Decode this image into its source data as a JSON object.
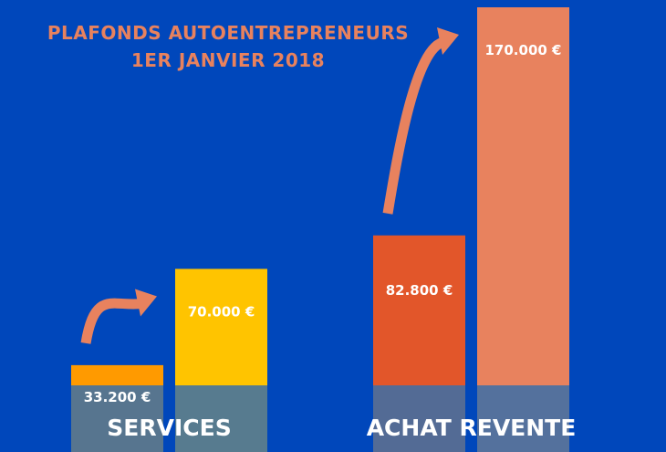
{
  "title": [
    "PLAFONDS AUTOENTREPRENEURS",
    "1ER JANVIER 2018"
  ],
  "colors": {
    "background": "#0047BB",
    "title": "#E8825E",
    "arrow": "#E8825E",
    "services_old": "#FF9A00",
    "services_new": "#FFC400",
    "achat_old": "#E2562A",
    "achat_new": "#E8825E"
  },
  "chart_data": {
    "type": "bar",
    "title": "PLAFONDS AUTOENTREPRENEURS 1ER JANVIER 2018",
    "groups": [
      {
        "label": "SERVICES",
        "bars": [
          {
            "value": 33200,
            "label": "33.200 €",
            "color": "#FF9A00"
          },
          {
            "value": 70000,
            "label": "70.000 €",
            "color": "#FFC400"
          }
        ]
      },
      {
        "label": "ACHAT REVENTE",
        "bars": [
          {
            "value": 82800,
            "label": "82.800 €",
            "color": "#E2562A"
          },
          {
            "value": 170000,
            "label": "170.000 €",
            "color": "#E8825E"
          }
        ]
      }
    ],
    "ylim": [
      0,
      170000
    ],
    "grid": false,
    "legend": "none"
  }
}
